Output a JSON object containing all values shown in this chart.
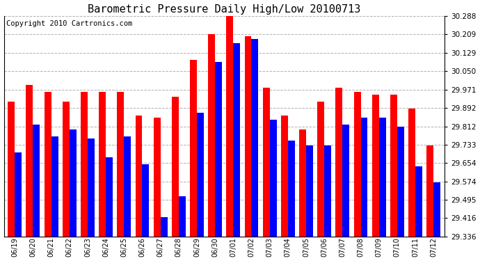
{
  "title": "Barometric Pressure Daily High/Low 20100713",
  "copyright": "Copyright 2010 Cartronics.com",
  "dates": [
    "06/19",
    "06/20",
    "06/21",
    "06/22",
    "06/23",
    "06/24",
    "06/25",
    "06/26",
    "06/27",
    "06/28",
    "06/29",
    "06/30",
    "07/01",
    "07/02",
    "07/03",
    "07/04",
    "07/05",
    "07/06",
    "07/07",
    "07/08",
    "07/09",
    "07/10",
    "07/11",
    "07/12"
  ],
  "highs": [
    29.92,
    29.99,
    29.96,
    29.92,
    29.96,
    29.96,
    29.96,
    29.86,
    29.85,
    29.94,
    30.1,
    30.21,
    30.29,
    30.2,
    29.98,
    29.86,
    29.8,
    29.92,
    29.98,
    29.96,
    29.95,
    29.95,
    29.89,
    29.73
  ],
  "lows": [
    29.7,
    29.82,
    29.77,
    29.8,
    29.76,
    29.68,
    29.77,
    29.65,
    29.42,
    29.51,
    29.87,
    30.09,
    30.17,
    30.19,
    29.84,
    29.75,
    29.73,
    29.73,
    29.82,
    29.85,
    29.85,
    29.81,
    29.64,
    29.57
  ],
  "ylim_min": 29.336,
  "ylim_max": 30.288,
  "yticks": [
    29.336,
    29.416,
    29.495,
    29.574,
    29.654,
    29.733,
    29.812,
    29.892,
    29.971,
    30.05,
    30.129,
    30.209,
    30.288
  ],
  "bar_color_high": "#ff0000",
  "bar_color_low": "#0000ff",
  "bg_color": "#ffffff",
  "grid_color": "#b0b0b0",
  "title_fontsize": 11,
  "copyright_fontsize": 7.5
}
